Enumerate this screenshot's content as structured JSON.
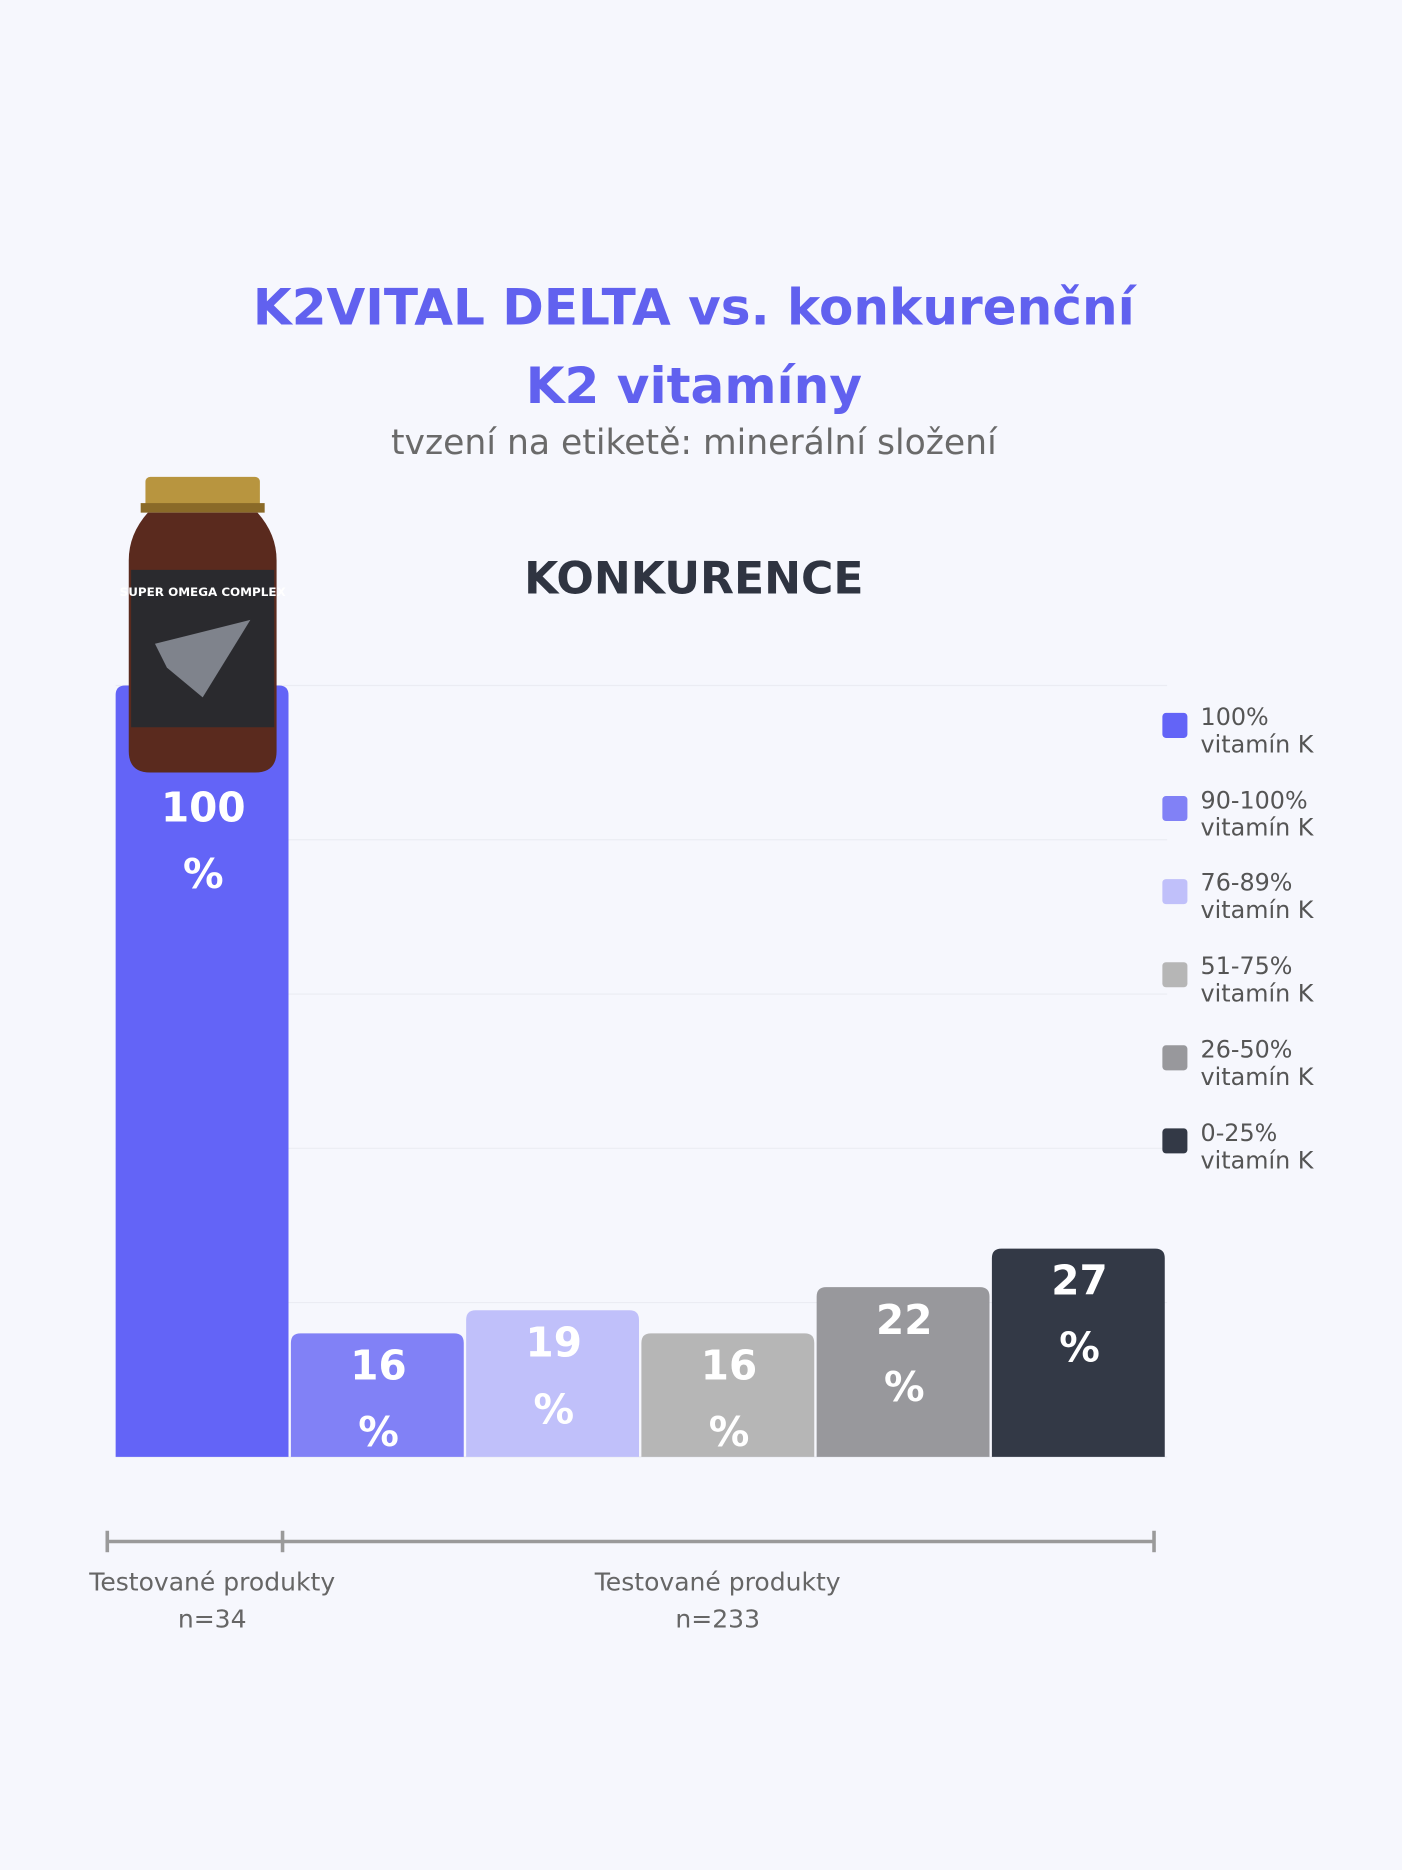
{
  "chart_data": {
    "type": "bar",
    "title": "K2VITAL DELTA vs. konkurenční K2 vitamíny",
    "subtitle": "tvzení na etiketě: minerální složení",
    "section_title": "KONKURENCE",
    "product_label": "SUPER OMEGA COMPLEX",
    "categories": [
      "100% vitamín K",
      "90-100% vitamín K",
      "76-89% vitamín K",
      "51-75% vitamín K",
      "26-50% vitamín K",
      "0-25% vitamín K"
    ],
    "values": [
      100,
      16,
      19,
      16,
      22,
      27
    ],
    "value_labels": [
      "100 %",
      "16 %",
      "19 %",
      "16 %",
      "22 %",
      "27 %"
    ],
    "colors": [
      "#6364f7",
      "#8181f6",
      "#c0c0fa",
      "#b6b6b6",
      "#98989c",
      "#333946"
    ],
    "ylim": [
      0,
      100
    ],
    "yticks": [
      0,
      20,
      40,
      60,
      80,
      100
    ],
    "grid": true,
    "legend": "right",
    "groups": [
      {
        "label": "Testované produkty",
        "n": "n=34"
      },
      {
        "label": "Testované produkty",
        "n": "n=233"
      }
    ]
  }
}
